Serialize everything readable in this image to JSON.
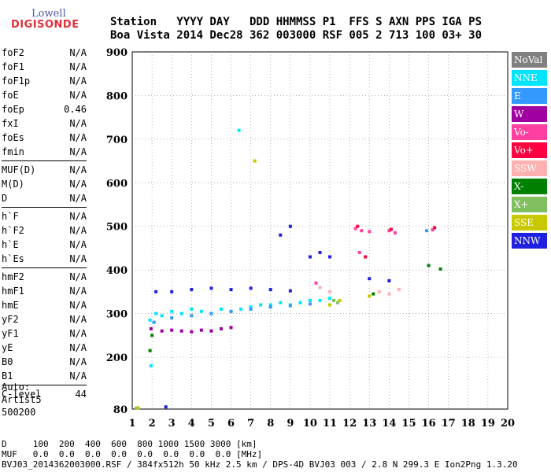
{
  "logo": {
    "line1": "Lowell",
    "line2": "DIGISONDE"
  },
  "header": {
    "line1": "Station   YYYY DAY   DDD HHMMSS P1  FFS S AXN PPS IGA PS",
    "line2": "Boa Vista 2014 Dec28 362 003000 RSF 005 2 713 100 03+ 30"
  },
  "params": {
    "group1": [
      {
        "name": "foF2",
        "value": "N/A"
      },
      {
        "name": "foF1",
        "value": "N/A"
      },
      {
        "name": "foF1p",
        "value": "N/A"
      },
      {
        "name": "foE",
        "value": "N/A"
      },
      {
        "name": "foEp",
        "value": "0.46"
      },
      {
        "name": "fxI",
        "value": "N/A"
      },
      {
        "name": "foEs",
        "value": "N/A"
      },
      {
        "name": "fmin",
        "value": "N/A"
      }
    ],
    "group2": [
      {
        "name": "MUF(D)",
        "value": "N/A"
      },
      {
        "name": "M(D)",
        "value": "N/A"
      },
      {
        "name": "D",
        "value": "N/A"
      }
    ],
    "group3": [
      {
        "name": "h`F",
        "value": "N/A"
      },
      {
        "name": "h`F2",
        "value": "N/A"
      },
      {
        "name": "h`E",
        "value": "N/A"
      },
      {
        "name": "h`Es",
        "value": "N/A"
      }
    ],
    "group4": [
      {
        "name": "hmF2",
        "value": "N/A"
      },
      {
        "name": "hmF1",
        "value": "N/A"
      },
      {
        "name": "hmE",
        "value": "N/A"
      },
      {
        "name": "yF2",
        "value": "N/A"
      },
      {
        "name": "yF1",
        "value": "N/A"
      },
      {
        "name": "yE",
        "value": "N/A"
      },
      {
        "name": "B0",
        "value": "N/A"
      },
      {
        "name": "B1",
        "value": "N/A"
      }
    ],
    "group5": [
      {
        "name": "C-level",
        "value": "44"
      }
    ]
  },
  "auto": {
    "line1": "Auto:",
    "line2": "Artist5",
    "line3": "500200"
  },
  "legend": [
    {
      "label": "NoVal",
      "color": "#808080"
    },
    {
      "label": "NNE",
      "color": "#00e5ff"
    },
    {
      "label": "E",
      "color": "#3399ff"
    },
    {
      "label": "W",
      "color": "#a000a0"
    },
    {
      "label": "Vo-",
      "color": "#ff40a0"
    },
    {
      "label": "Vo+",
      "color": "#ff0040"
    },
    {
      "label": "SSW",
      "color": "#ffb0b0"
    },
    {
      "label": "X-",
      "color": "#008000"
    },
    {
      "label": "X+",
      "color": "#80c060"
    },
    {
      "label": "SSE",
      "color": "#c8c800"
    },
    {
      "label": "NNW",
      "color": "#2020e0"
    }
  ],
  "bottom": {
    "line1": "D     100  200  400  600  800 1000 1500 3000 [km]",
    "line2": "MUF   0.0  0.0  0.0  0.0  0.0  0.0  0.0  0.0 [MHz]",
    "line3": "BVJ03_2014362003000.RSF / 384fx512h 50 kHz 2.5 km / DPS-4D BVJ03 003 / 2.8 N 299.3 E Ion2Png 1.3.20"
  },
  "chart_data": {
    "type": "scatter",
    "xlim": [
      1,
      20
    ],
    "ylim": [
      80,
      900
    ],
    "xticks": [
      1,
      2,
      3,
      4,
      5,
      6,
      7,
      8,
      9,
      10,
      11,
      12,
      13,
      14,
      15,
      16,
      17,
      18,
      19,
      20
    ],
    "yticks": [
      80,
      200,
      300,
      400,
      500,
      600,
      700,
      800,
      900
    ],
    "grid": true,
    "legend_placement": "right",
    "series": [
      {
        "name": "NNE",
        "color": "#00e5ff",
        "points": [
          [
            1.9,
            285
          ],
          [
            2.2,
            300
          ],
          [
            2.5,
            295
          ],
          [
            3,
            305
          ],
          [
            3.5,
            300
          ],
          [
            4,
            310
          ],
          [
            4.5,
            305
          ],
          [
            5,
            300
          ],
          [
            5.5,
            310
          ],
          [
            6,
            305
          ],
          [
            6.5,
            310
          ],
          [
            7,
            315
          ],
          [
            7.5,
            320
          ],
          [
            8,
            320
          ],
          [
            8.5,
            325
          ],
          [
            9,
            320
          ],
          [
            9.5,
            325
          ],
          [
            10,
            330
          ],
          [
            10.5,
            330
          ],
          [
            11,
            335
          ],
          [
            1.95,
            180
          ],
          [
            6.4,
            720
          ]
        ]
      },
      {
        "name": "E",
        "color": "#3399ff",
        "points": [
          [
            2.1,
            280
          ],
          [
            3,
            290
          ],
          [
            4,
            295
          ],
          [
            5,
            300
          ],
          [
            6,
            305
          ],
          [
            7,
            310
          ],
          [
            8,
            315
          ],
          [
            9,
            318
          ],
          [
            10,
            322
          ],
          [
            15.9,
            490
          ]
        ]
      },
      {
        "name": "W",
        "color": "#a000a0",
        "points": [
          [
            1.95,
            265
          ],
          [
            2.5,
            260
          ],
          [
            3,
            262
          ],
          [
            3.5,
            260
          ],
          [
            4,
            258
          ],
          [
            4.5,
            262
          ],
          [
            5,
            260
          ],
          [
            5.5,
            265
          ],
          [
            6,
            268
          ]
        ]
      },
      {
        "name": "Vo-",
        "color": "#ff40a0",
        "points": [
          [
            12.3,
            495
          ],
          [
            12.6,
            490
          ],
          [
            13,
            488
          ],
          [
            14,
            490
          ],
          [
            14.3,
            485
          ],
          [
            16.2,
            492
          ],
          [
            12.5,
            440
          ],
          [
            10.3,
            370
          ]
        ]
      },
      {
        "name": "Vo+",
        "color": "#ff0040",
        "points": [
          [
            12.4,
            500
          ],
          [
            14.1,
            493
          ],
          [
            16.3,
            497
          ],
          [
            12.8,
            430
          ]
        ]
      },
      {
        "name": "SSW",
        "color": "#ffb0b0",
        "points": [
          [
            10.5,
            360
          ],
          [
            11,
            350
          ],
          [
            13.5,
            350
          ],
          [
            14,
            345
          ],
          [
            14.5,
            355
          ]
        ]
      },
      {
        "name": "X-",
        "color": "#008000",
        "points": [
          [
            1.9,
            215
          ],
          [
            2,
            250
          ],
          [
            16,
            410
          ],
          [
            16.6,
            402
          ],
          [
            13.2,
            345
          ]
        ]
      },
      {
        "name": "X+",
        "color": "#80c060",
        "points": [
          [
            1.2,
            82
          ],
          [
            11.2,
            330
          ],
          [
            11.4,
            325
          ]
        ]
      },
      {
        "name": "SSE",
        "color": "#c8c800",
        "points": [
          [
            11,
            320
          ],
          [
            11.5,
            330
          ],
          [
            13,
            340
          ],
          [
            7.2,
            650
          ],
          [
            1.3,
            83
          ]
        ]
      },
      {
        "name": "NNW",
        "color": "#2020e0",
        "points": [
          [
            2.2,
            350
          ],
          [
            3,
            350
          ],
          [
            4,
            355
          ],
          [
            5,
            358
          ],
          [
            6,
            355
          ],
          [
            7,
            358
          ],
          [
            8,
            355
          ],
          [
            9,
            352
          ],
          [
            10,
            430
          ],
          [
            10.5,
            440
          ],
          [
            11,
            430
          ],
          [
            13,
            380
          ],
          [
            14,
            375
          ],
          [
            8.5,
            480
          ],
          [
            9,
            500
          ],
          [
            2.7,
            85
          ]
        ]
      }
    ]
  }
}
